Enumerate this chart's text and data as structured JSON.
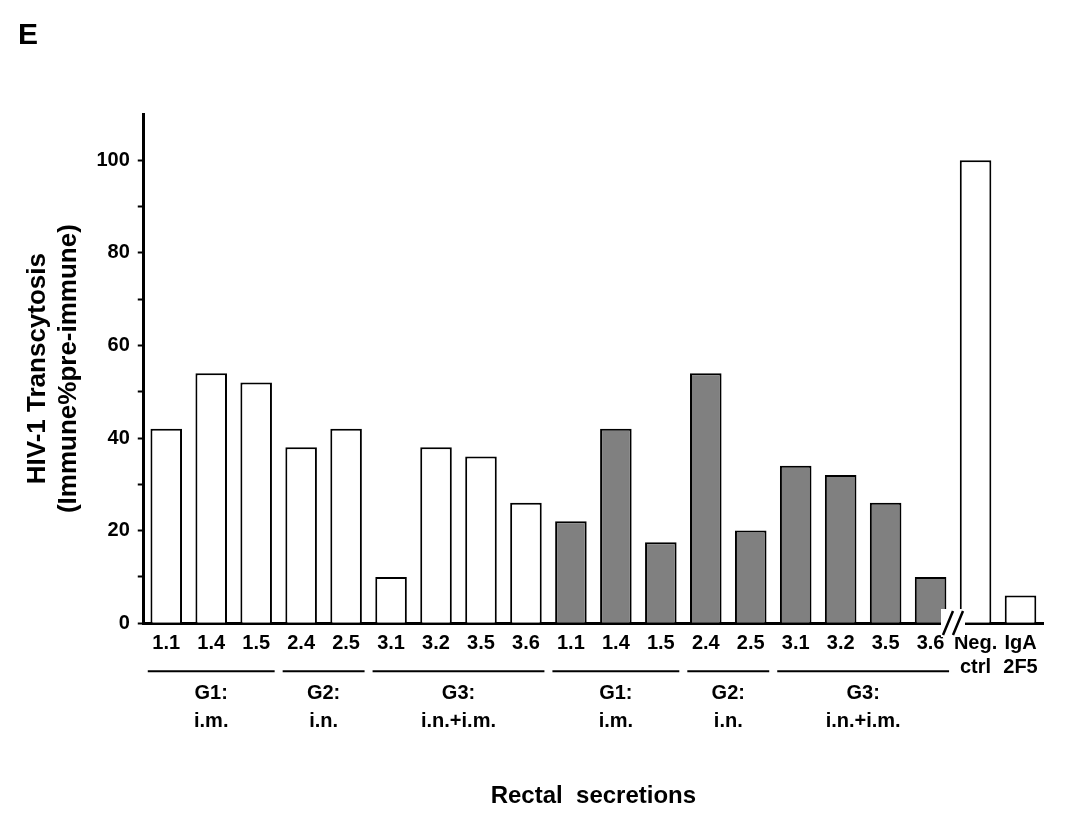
{
  "chart_data": {
    "type": "bar",
    "title": "E",
    "xlabel": "Rectal  secretions",
    "ylabel": "HIV-1 Transcytosis\n(Immune%pre-immune)",
    "categories": [
      "1.1",
      "1.4",
      "1.5",
      "2.4",
      "2.5",
      "3.1",
      "3.2",
      "3.5",
      "3.6",
      "1.1",
      "1.4",
      "1.5",
      "2.4",
      "2.5",
      "3.1",
      "3.2",
      "3.5",
      "3.6",
      "Neg. ctrl",
      "IgA 2F5"
    ],
    "values": [
      42,
      54,
      52,
      38,
      42,
      10,
      38,
      36,
      26,
      22,
      42,
      17.5,
      54,
      20,
      34,
      32,
      26,
      10,
      100,
      6
    ],
    "colors": [
      "#ffffff",
      "#ffffff",
      "#ffffff",
      "#ffffff",
      "#ffffff",
      "#ffffff",
      "#ffffff",
      "#ffffff",
      "#ffffff",
      "#808080",
      "#808080",
      "#808080",
      "#808080",
      "#808080",
      "#808080",
      "#808080",
      "#808080",
      "#808080",
      "#ffffff",
      "#ffffff"
    ],
    "ylim": [
      0,
      110
    ],
    "yticks": [
      0,
      {
        "value": 10,
        "label": null
      },
      20,
      {
        "value": 30,
        "label": null
      },
      40,
      {
        "value": 50,
        "label": null
      },
      60,
      {
        "value": 70,
        "label": null
      },
      80,
      {
        "value": 90,
        "label": null
      },
      100
    ],
    "annotations": [
      "G1:\ni.m.",
      "G2:\ni.n.",
      "G3:\ni.n.+i.m.",
      "G1:\ni.m.",
      "G2:\ni.n.",
      "G3:\ni.n.+i.m."
    ],
    "grid": false,
    "legend": false
  }
}
